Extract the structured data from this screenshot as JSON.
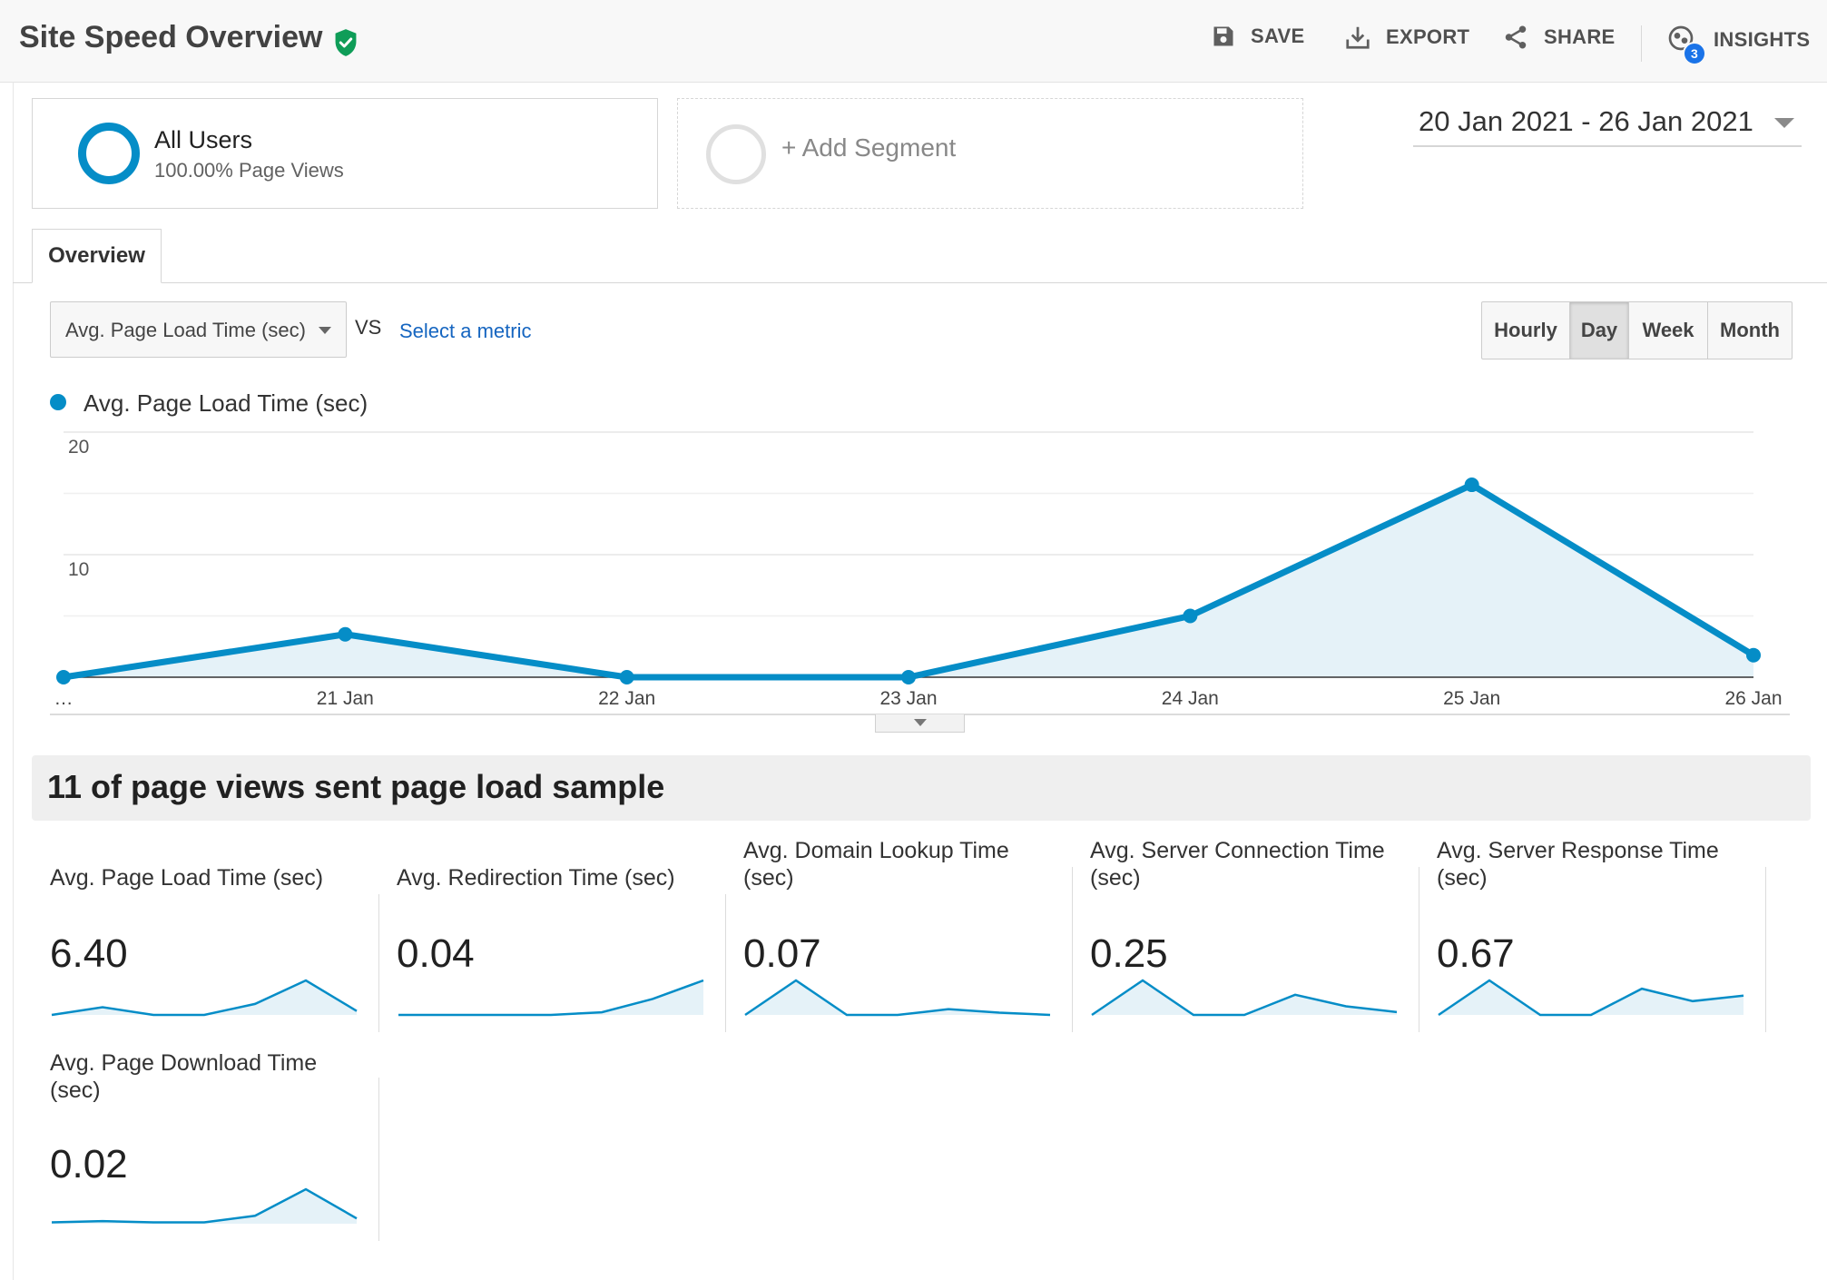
{
  "header": {
    "title": "Site Speed Overview",
    "verified_icon": "shield-check-icon",
    "actions": {
      "save": "SAVE",
      "export": "EXPORT",
      "share": "SHARE",
      "insights": "INSIGHTS",
      "insights_badge": "3"
    }
  },
  "segments": {
    "active": {
      "name": "All Users",
      "detail": "100.00% Page Views"
    },
    "add_label": "+ Add Segment"
  },
  "date_range": "20 Jan 2021 - 26 Jan 2021",
  "tabs": {
    "overview": "Overview"
  },
  "controls": {
    "metric": "Avg. Page Load Time (sec)",
    "vs": "VS",
    "select_metric": "Select a metric",
    "granularity": [
      "Hourly",
      "Day",
      "Week",
      "Month"
    ],
    "granularity_selected": "Day"
  },
  "colors": {
    "accent": "#058dc7",
    "area": "#e5f2f8",
    "link": "#1565c0",
    "verified": "#0f9d58"
  },
  "chart_data": {
    "type": "line",
    "legend": "Avg. Page Load Time (sec)",
    "x": [
      "20 Jan",
      "21 Jan",
      "22 Jan",
      "23 Jan",
      "24 Jan",
      "25 Jan",
      "26 Jan"
    ],
    "x_tick_labels": [
      "…",
      "21 Jan",
      "22 Jan",
      "23 Jan",
      "24 Jan",
      "25 Jan",
      "26 Jan"
    ],
    "series": [
      {
        "name": "Avg. Page Load Time (sec)",
        "values": [
          0.0,
          3.5,
          0.0,
          0.0,
          5.0,
          15.7,
          1.8
        ]
      }
    ],
    "y_ticks": [
      10,
      20
    ],
    "ylim": [
      0,
      20
    ],
    "grid": true,
    "area_fill": true
  },
  "sample_banner": "11 of page views sent page load sample",
  "summary_cards": [
    {
      "title": "Avg. Page Load Time (sec)",
      "value": "6.40",
      "spark": [
        0.0,
        3.5,
        0.0,
        0.0,
        5.0,
        15.7,
        1.8
      ]
    },
    {
      "title": "Avg. Redirection Time (sec)",
      "value": "0.04",
      "spark": [
        0,
        0,
        0,
        0,
        0.01,
        0.06,
        0.13
      ]
    },
    {
      "title": "Avg. Domain Lookup Time (sec)",
      "value": "0.07",
      "spark": [
        0,
        0.3,
        0,
        0,
        0.05,
        0.02,
        0
      ]
    },
    {
      "title": "Avg. Server Connection Time (sec)",
      "value": "0.25",
      "spark": [
        0,
        1.2,
        0,
        0,
        0.7,
        0.3,
        0.1
      ]
    },
    {
      "title": "Avg. Server Response Time (sec)",
      "value": "0.67",
      "spark": [
        0,
        2.5,
        0,
        0,
        1.9,
        1.0,
        1.4
      ]
    },
    {
      "title": "Avg. Page Download Time (sec)",
      "value": "0.02",
      "spark": [
        0.05,
        0.1,
        0.05,
        0.05,
        0.3,
        1.3,
        0.2
      ]
    }
  ]
}
